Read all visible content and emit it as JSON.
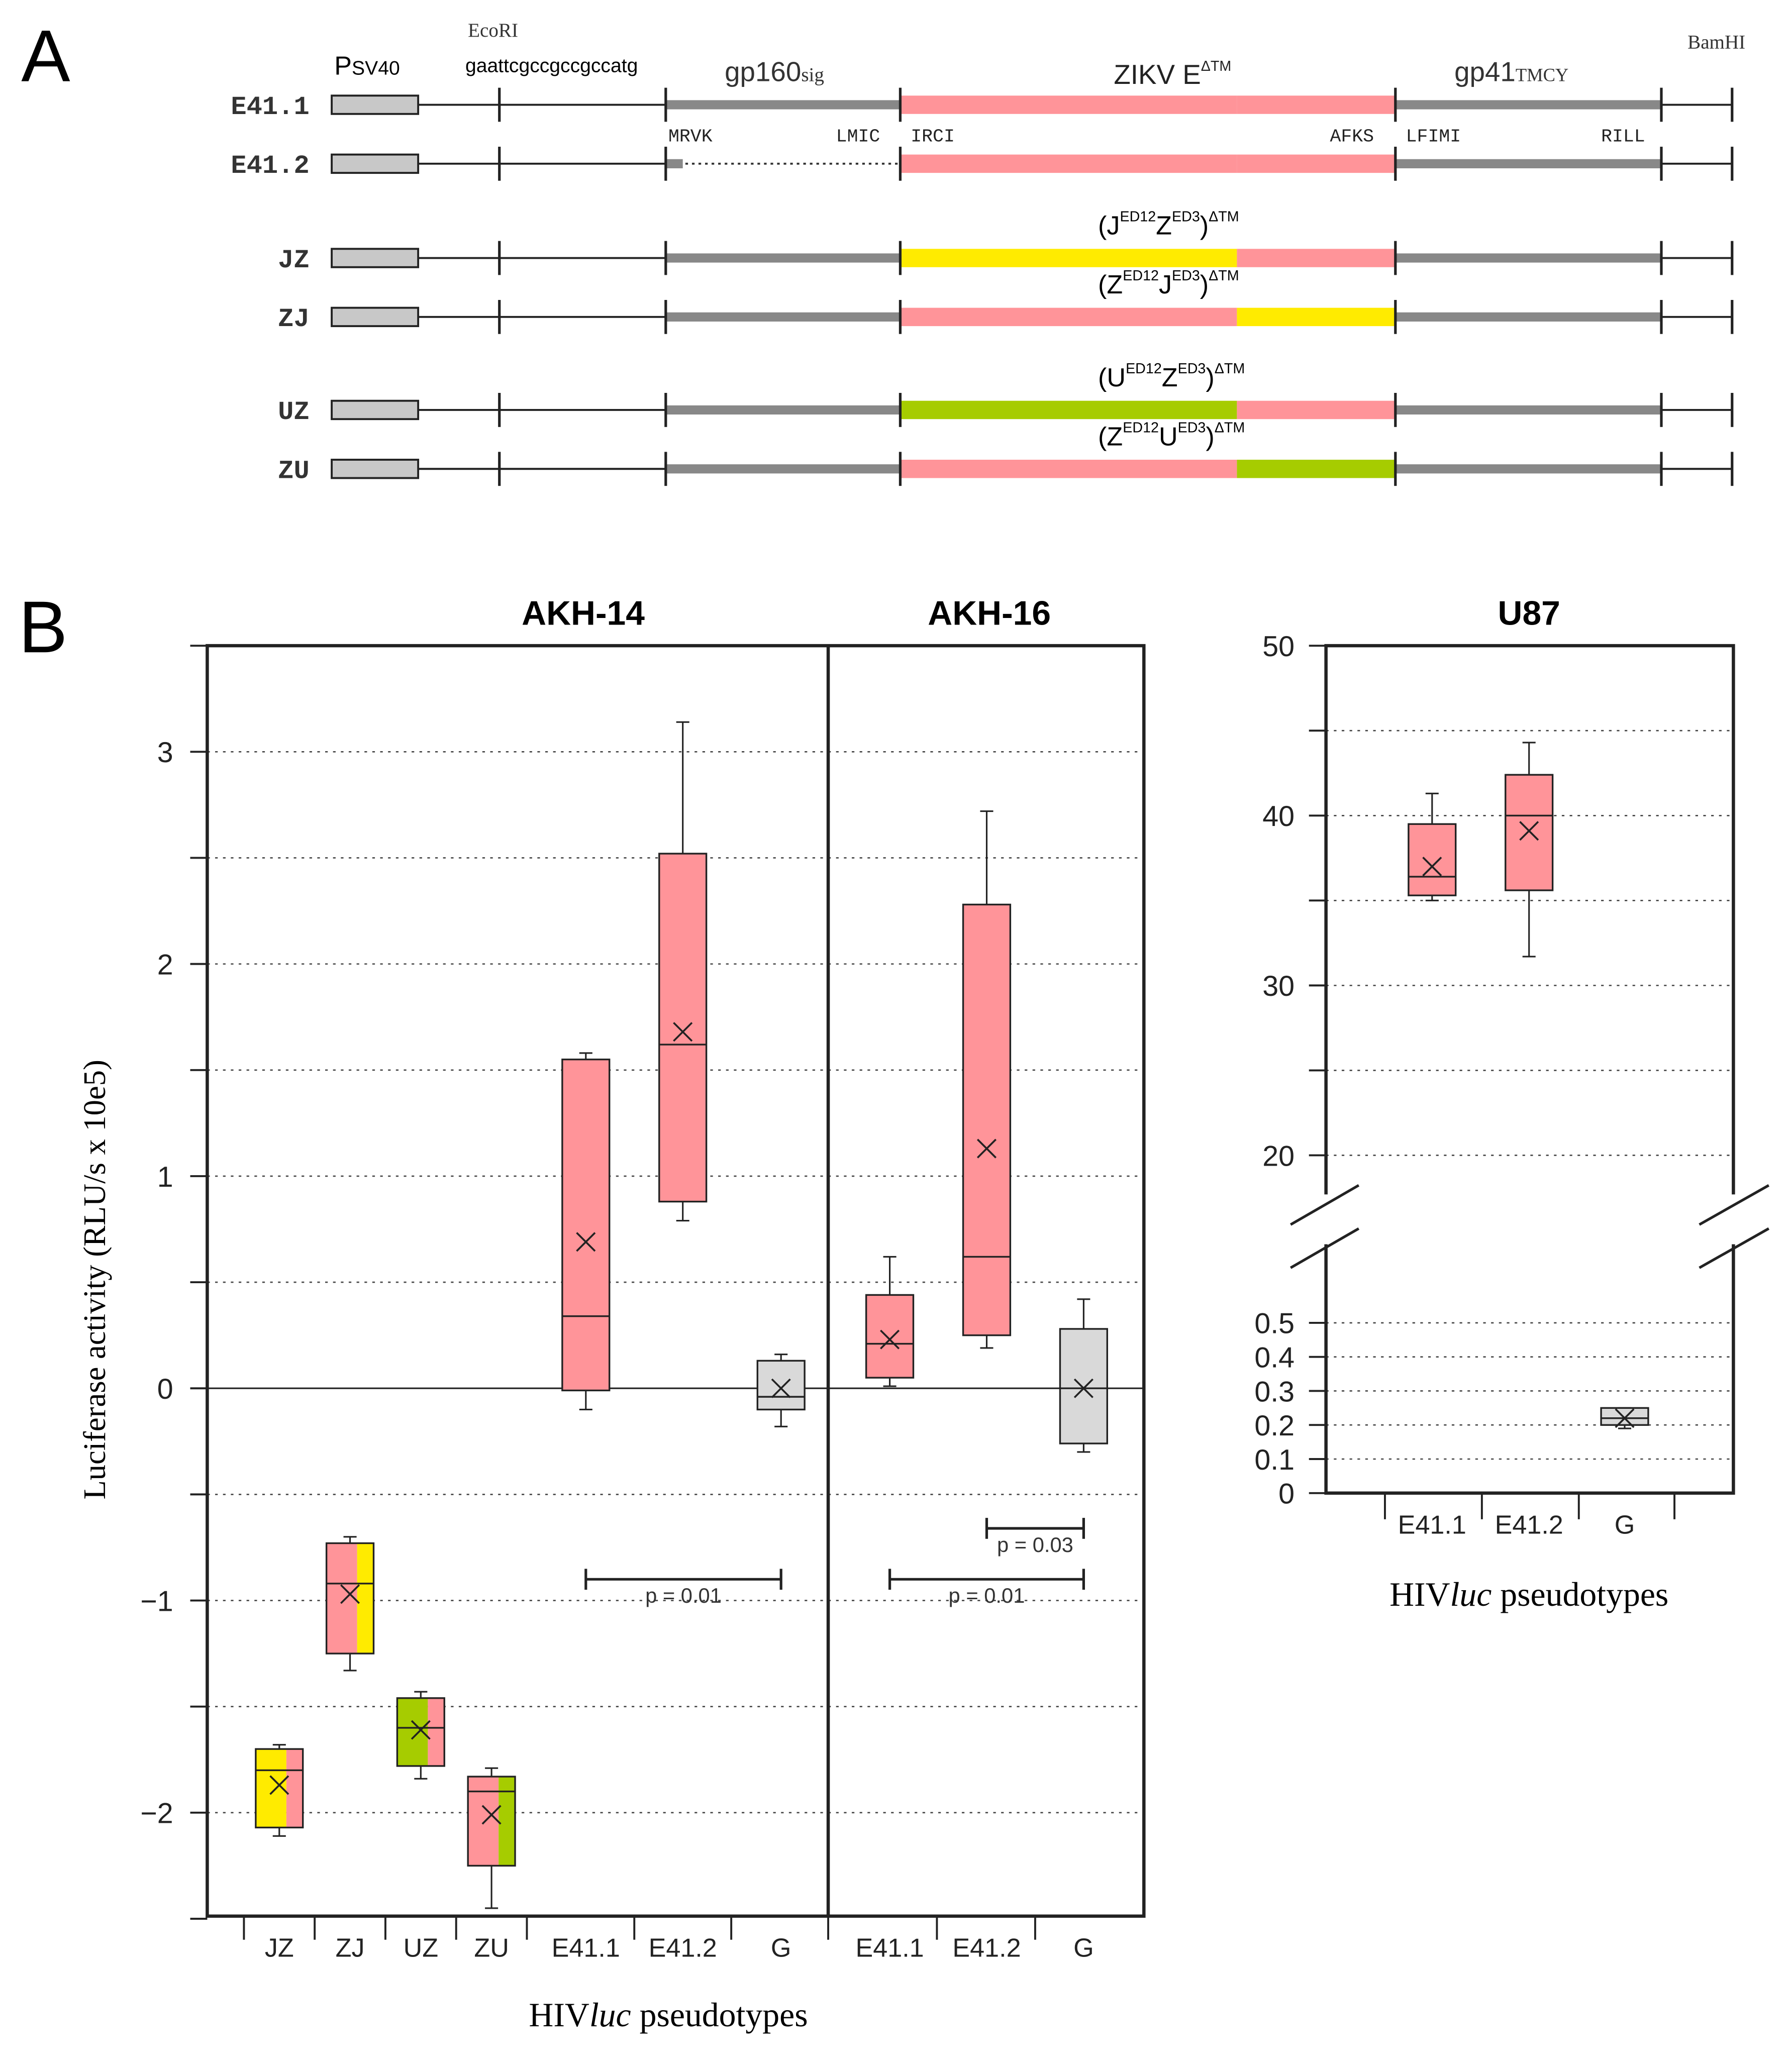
{
  "panel_a": {
    "label": "A",
    "header": {
      "promoter": "P",
      "promoter_sub": "SV40",
      "ecori": "EcoRI",
      "seq": "gaattcgccgccgccatg",
      "gp160": "gp160",
      "gp160_sub": "sig",
      "zikv": "ZIKV E",
      "zikv_sup": "ΔTM",
      "gp41": "gp41",
      "gp41_sub": "TMCY",
      "bamhi": "BamHI"
    },
    "motifs": [
      "MRVK",
      "LMIC",
      "IRCI",
      "AFKS",
      "LFIMI",
      "RILL"
    ],
    "constructs": [
      {
        "name": "E41.1",
        "left": "#ff9499",
        "right": "#ff9499",
        "signal": "full"
      },
      {
        "name": "E41.2",
        "left": "#ff9499",
        "right": "#ff9499",
        "signal": "deleted"
      },
      {
        "name": "JZ",
        "left": "#ffeb00",
        "right": "#ff9499",
        "signal": "full",
        "chimera": [
          "J",
          "Z"
        ]
      },
      {
        "name": "ZJ",
        "left": "#ff9499",
        "right": "#ffeb00",
        "signal": "full",
        "chimera": [
          "Z",
          "J"
        ]
      },
      {
        "name": "UZ",
        "left": "#a6cc00",
        "right": "#ff9499",
        "signal": "full",
        "chimera": [
          "U",
          "Z"
        ]
      },
      {
        "name": "ZU",
        "left": "#ff9499",
        "right": "#a6cc00",
        "signal": "full",
        "chimera": [
          "Z",
          "U"
        ]
      }
    ],
    "chimera_sup1": "ED12",
    "chimera_sup2": "ED3",
    "chimera_sup3": "ΔTM"
  },
  "panel_b": {
    "label": "B"
  },
  "chart_data": [
    {
      "type": "box",
      "title": "AKH-14 / AKH-16",
      "ylabel": "Luciferase activity (RLU/s x 10e5)",
      "xlabel": "HIVluc pseudotypes",
      "ylim": [
        -2.5,
        3.5
      ],
      "yticks": [
        "3",
        "2",
        "1",
        "0",
        "−1",
        "−2"
      ],
      "ytick_values": [
        3,
        2,
        1,
        0,
        -1,
        -2
      ],
      "grid": "dotted every 0.5",
      "groups": [
        {
          "title": "AKH-14",
          "boxes": [
            {
              "label": "JZ",
              "min": -2.11,
              "q1": -2.07,
              "median": -1.8,
              "q3": -1.7,
              "max": -1.68,
              "mean": -1.87,
              "colors": [
                "#ffeb00",
                "#ff9499"
              ]
            },
            {
              "label": "ZJ",
              "min": -1.33,
              "q1": -1.25,
              "median": -0.92,
              "q3": -0.73,
              "max": -0.7,
              "mean": -0.97,
              "colors": [
                "#ff9499",
                "#ffeb00"
              ]
            },
            {
              "label": "UZ",
              "min": -1.84,
              "q1": -1.78,
              "median": -1.6,
              "q3": -1.46,
              "max": -1.43,
              "mean": -1.61,
              "colors": [
                "#a6cc00",
                "#ff9499"
              ]
            },
            {
              "label": "ZU",
              "min": -2.45,
              "q1": -2.25,
              "median": -1.9,
              "q3": -1.83,
              "max": -1.79,
              "mean": -2.01,
              "colors": [
                "#ff9499",
                "#a6cc00"
              ]
            },
            {
              "label": "E41.1",
              "min": -0.1,
              "q1": -0.01,
              "median": 0.34,
              "q3": 1.55,
              "max": 1.58,
              "mean": 0.69,
              "colors": [
                "#ff9499"
              ]
            },
            {
              "label": "E41.2",
              "min": 0.79,
              "q1": 0.88,
              "median": 1.62,
              "q3": 2.52,
              "max": 3.14,
              "mean": 1.68,
              "colors": [
                "#ff9499"
              ]
            },
            {
              "label": "G",
              "min": -0.18,
              "q1": -0.1,
              "median": -0.04,
              "q3": 0.13,
              "max": 0.16,
              "mean": 0.0,
              "colors": [
                "#d9d9d9"
              ]
            }
          ],
          "significance": [
            {
              "from": "E41.1",
              "to": "G",
              "text": "p = 0.01",
              "y": -0.9
            }
          ]
        },
        {
          "title": "AKH-16",
          "boxes": [
            {
              "label": "E41.1",
              "min": 0.01,
              "q1": 0.05,
              "median": 0.21,
              "q3": 0.44,
              "max": 0.62,
              "mean": 0.23,
              "colors": [
                "#ff9499"
              ]
            },
            {
              "label": "E41.2",
              "min": 0.19,
              "q1": 0.25,
              "median": 0.62,
              "q3": 2.28,
              "max": 2.72,
              "mean": 1.13,
              "colors": [
                "#ff9499"
              ]
            },
            {
              "label": "G",
              "min": -0.3,
              "q1": -0.26,
              "median": 0.0,
              "q3": 0.28,
              "max": 0.42,
              "mean": 0.0,
              "colors": [
                "#d9d9d9"
              ]
            }
          ],
          "significance": [
            {
              "from": "E41.2",
              "to": "G",
              "text": "p = 0.03",
              "y": -0.66
            },
            {
              "from": "E41.1",
              "to": "G",
              "text": "p = 0.01",
              "y": -0.9
            }
          ]
        }
      ]
    },
    {
      "type": "box",
      "title": "U87",
      "xlabel": "HIVluc pseudotypes",
      "ylim_upper": [
        20,
        50
      ],
      "ylim_lower": [
        0,
        0.5
      ],
      "yticks_upper": [
        "50",
        "40",
        "30",
        "20"
      ],
      "yticks_upper_values": [
        50,
        40,
        30,
        20
      ],
      "yticks_lower": [
        "0.5",
        "0.4",
        "0.3",
        "0.2",
        "0.1",
        "0"
      ],
      "yticks_lower_values": [
        0.5,
        0.4,
        0.3,
        0.2,
        0.1,
        0
      ],
      "boxes": [
        {
          "label": "E41.1",
          "min": 35.0,
          "q1": 35.3,
          "median": 36.4,
          "q3": 39.5,
          "max": 41.3,
          "mean": 37.0,
          "colors": [
            "#ff9499"
          ]
        },
        {
          "label": "E41.2",
          "min": 31.7,
          "q1": 35.6,
          "median": 40.0,
          "q3": 42.4,
          "max": 44.3,
          "mean": 39.1,
          "colors": [
            "#ff9499"
          ]
        },
        {
          "label": "G",
          "min": 0.19,
          "q1": 0.2,
          "median": 0.22,
          "q3": 0.25,
          "max": 0.25,
          "mean": 0.22,
          "colors": [
            "#d9d9d9"
          ]
        }
      ]
    }
  ]
}
